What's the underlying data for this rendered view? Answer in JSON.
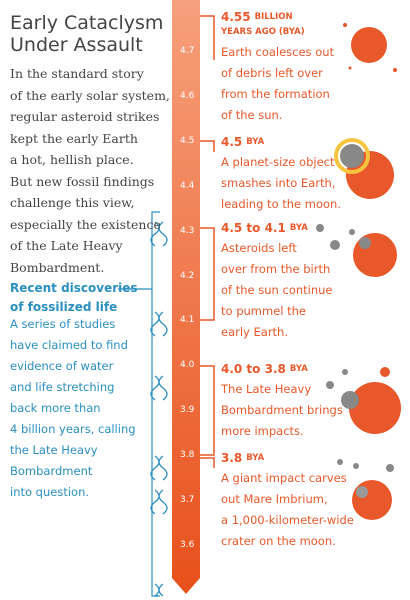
{
  "title": [
    "Early Cataclysm",
    "Under Assault"
  ],
  "intro": [
    "In the standard story",
    "of the early solar system,",
    "regular asteroid strikes",
    "kept the early Earth",
    "a hot, hellish place.",
    "But new fossil findings",
    "challenge this view,",
    "especially the existence",
    "of the Late Heavy",
    "Bombardment."
  ],
  "sidebar": {
    "heading": [
      "Recent discoveries",
      "of fossilized life"
    ],
    "lines": [
      "A series of studies",
      "have claimed to find",
      "evidence of water",
      "and life stretching",
      "back more than",
      "4 billion years, calling",
      "the Late Heavy",
      "Bombardment",
      "into question."
    ]
  },
  "scale": [
    "4.7",
    "4.6",
    "4.5",
    "4.4",
    "4.3",
    "4.2",
    "4.1",
    "4.0",
    "3.9",
    "3.8",
    "3.7",
    "3.6"
  ],
  "events": [
    {
      "value": "4.55",
      "unit": [
        "BILLION",
        "YEARS AGO (BYA)"
      ],
      "lines": [
        "Earth coalesces out",
        "of debris left over",
        "from the formation",
        "of the sun."
      ]
    },
    {
      "value": "4.5",
      "unit": [
        "BYA"
      ],
      "lines": [
        "A planet-size object",
        "smashes into Earth,",
        "leading to the moon."
      ]
    },
    {
      "value": "4.5 to 4.1",
      "unit": [
        "BYA"
      ],
      "lines": [
        "Asteroids left",
        "over from the birth",
        "of the sun continue",
        "to pummel the",
        "early Earth."
      ]
    },
    {
      "value": "4.0 to 3.8",
      "unit": [
        "BYA"
      ],
      "lines": [
        "The Late Heavy",
        "Bombardment brings",
        "more impacts."
      ]
    },
    {
      "value": "3.8",
      "unit": [
        "BYA"
      ],
      "lines": [
        "A giant impact carves",
        "out Mare Imbrium,",
        "a 1,000-kilometer-wide",
        "crater on the moon."
      ]
    }
  ]
}
